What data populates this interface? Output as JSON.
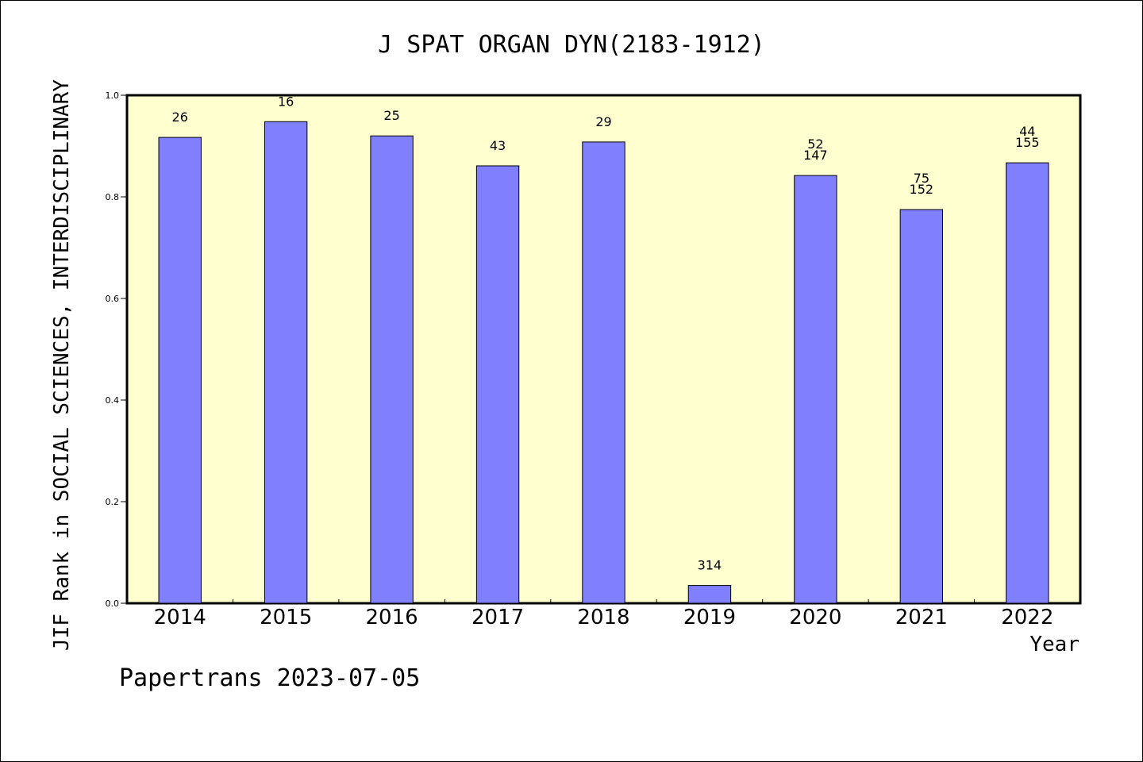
{
  "chart_data": {
    "type": "bar",
    "title": "J SPAT ORGAN DYN(2183-1912)",
    "xlabel": "Year",
    "ylabel": "JIF Rank in SOCIAL SCIENCES, INTERDISCIPLINARY",
    "ylim": [
      0,
      1.0
    ],
    "yticks": [
      "0.0",
      "0.2",
      "0.4",
      "0.6",
      "0.8",
      "1.0"
    ],
    "grid": false,
    "categories": [
      "2014",
      "2015",
      "2016",
      "2017",
      "2018",
      "2019",
      "2020",
      "2021",
      "2022"
    ],
    "values": [
      0.917,
      0.948,
      0.92,
      0.861,
      0.908,
      0.035,
      0.842,
      0.775,
      0.867
    ],
    "labels": [
      [
        "26"
      ],
      [
        "16"
      ],
      [
        "25"
      ],
      [
        "43"
      ],
      [
        "29"
      ],
      [
        "314"
      ],
      [
        "52",
        "147"
      ],
      [
        "75",
        "152"
      ],
      [
        "44",
        "155"
      ]
    ],
    "colors": {
      "bar": "#8080ff",
      "plot_bg": "#ffffd0",
      "axis": "#000000"
    }
  },
  "footer": {
    "credit": "Papertrans 2023-07-05"
  }
}
